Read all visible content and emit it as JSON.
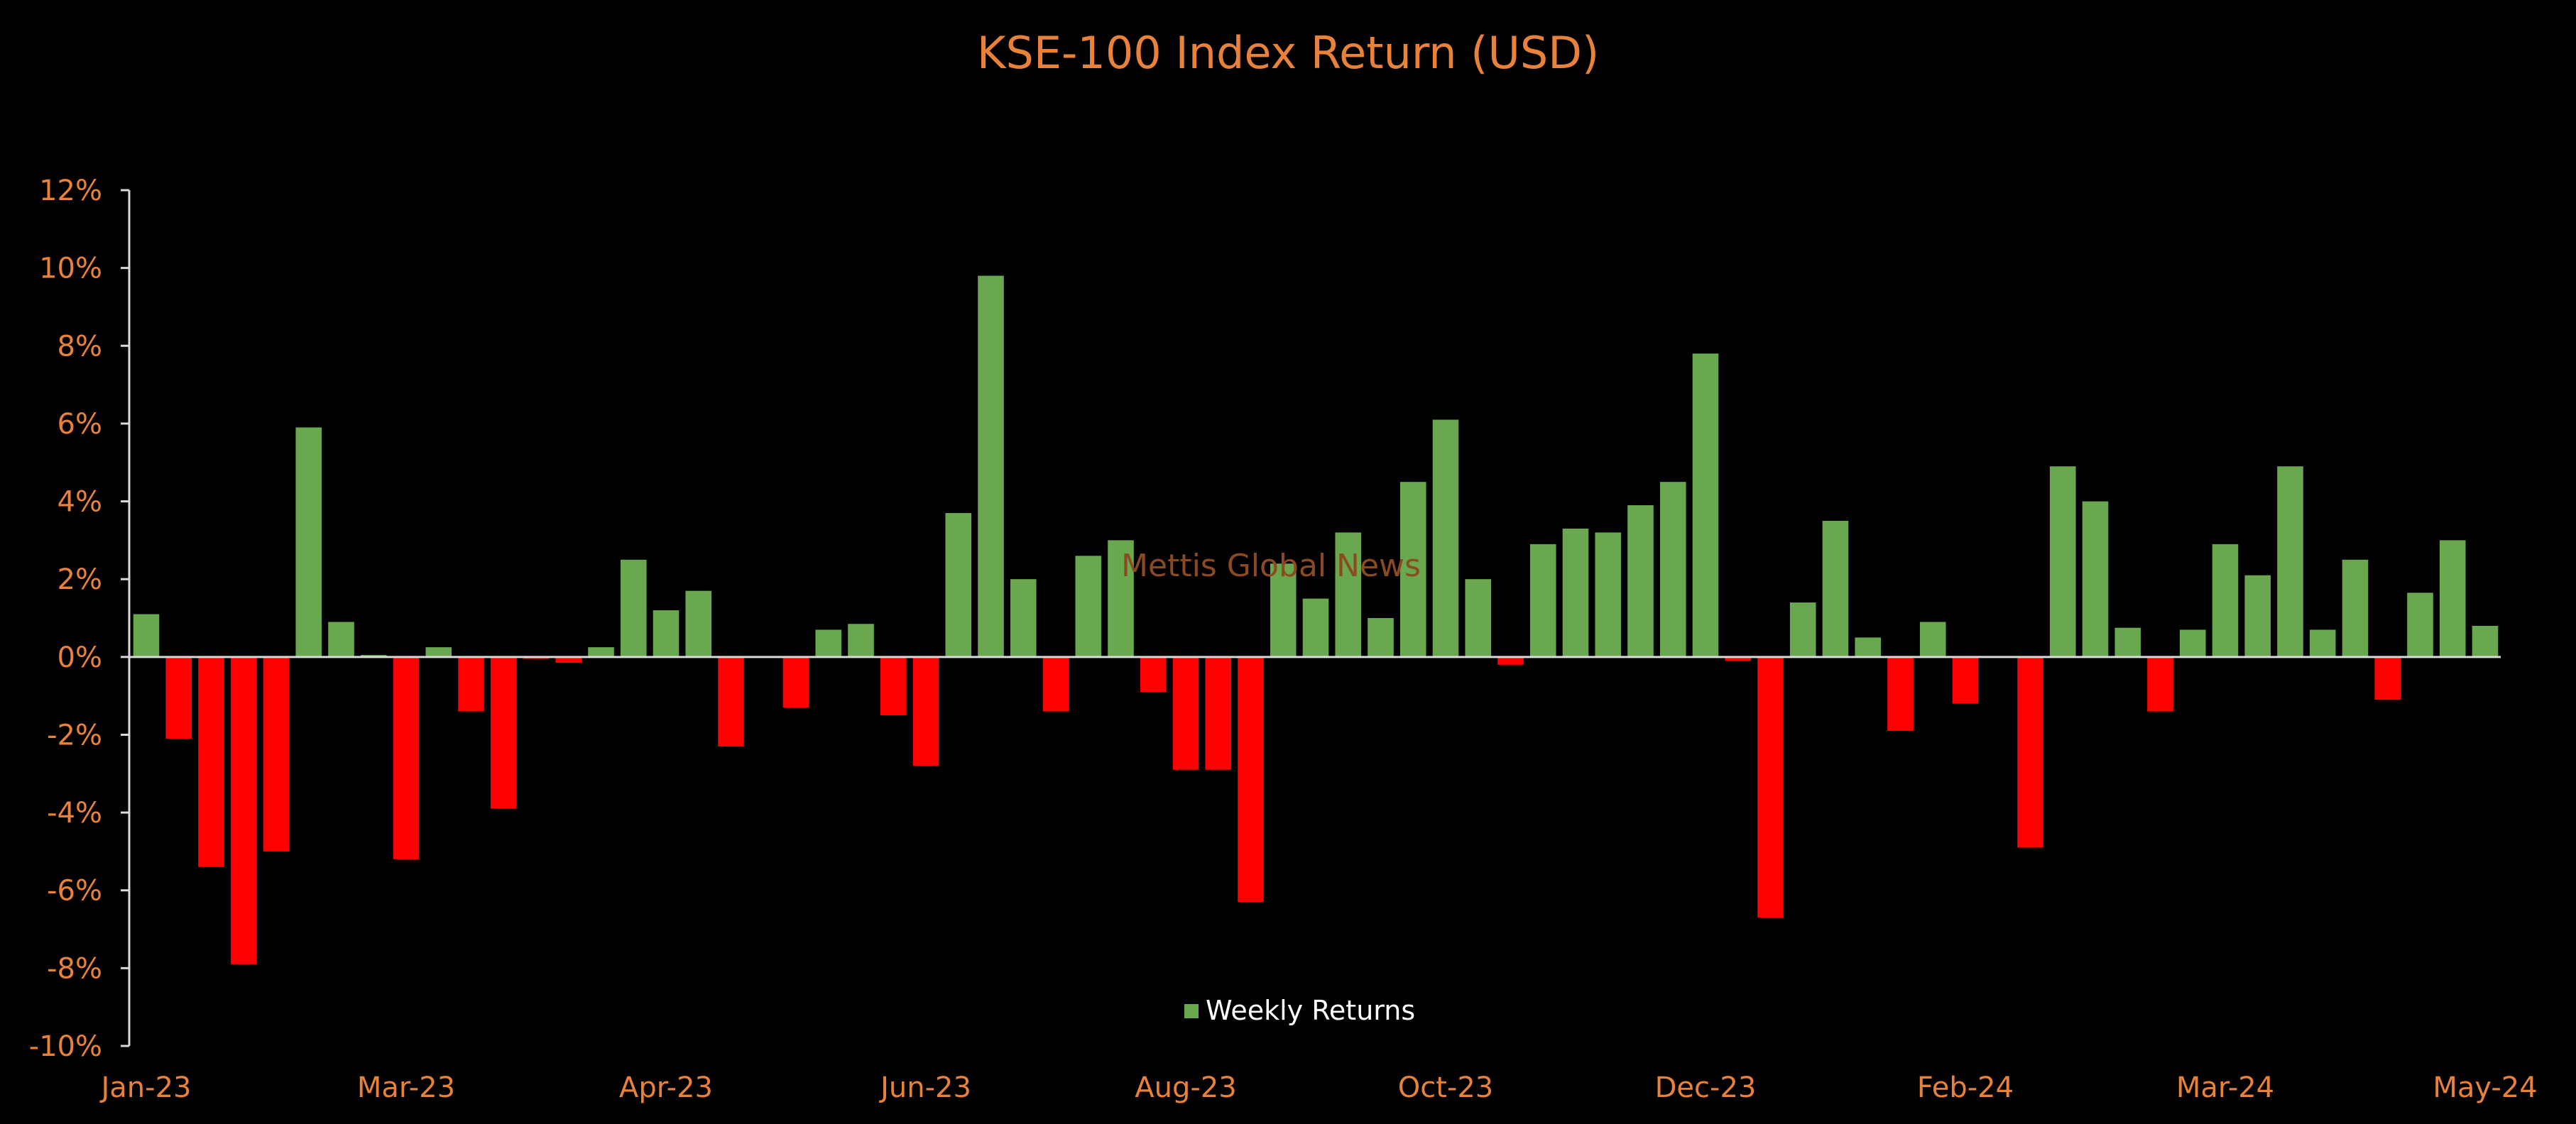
{
  "chart_data": {
    "type": "bar",
    "title": "KSE-100 Index Return (USD)",
    "watermark": "Mettis Global News",
    "xlabel": "",
    "ylabel": "",
    "ylim": [
      -10,
      12
    ],
    "y_ticks": [
      "-10%",
      "-8%",
      "-6%",
      "-4%",
      "-2%",
      "0%",
      "2%",
      "4%",
      "6%",
      "8%",
      "10%",
      "12%"
    ],
    "x_ticks": [
      "Jan-23",
      "Mar-23",
      "Apr-23",
      "Jun-23",
      "Aug-23",
      "Oct-23",
      "Dec-23",
      "Feb-24",
      "Mar-24",
      "May-24"
    ],
    "grid": false,
    "legend_position": "bottom",
    "colors": {
      "positive": "#6AA84F",
      "negative": "#FF0000",
      "text": "#E8813A",
      "axis": "#D9D9D9",
      "background": "#000000"
    },
    "series": [
      {
        "name": "Weekly Returns",
        "values": [
          1.1,
          -2.1,
          -5.4,
          -7.9,
          -5.0,
          5.9,
          0.9,
          0.05,
          -5.2,
          0.25,
          -1.4,
          -3.9,
          -0.05,
          -0.15,
          0.25,
          2.5,
          1.2,
          1.7,
          -2.3,
          0.0,
          -1.3,
          0.7,
          0.85,
          -1.5,
          -2.8,
          3.7,
          9.8,
          2.0,
          -1.4,
          2.6,
          3.0,
          -0.9,
          -2.9,
          -2.9,
          -6.3,
          2.4,
          1.5,
          3.2,
          1.0,
          4.5,
          6.1,
          2.0,
          -0.2,
          2.9,
          3.3,
          3.2,
          3.9,
          4.5,
          7.8,
          -0.1,
          -6.7,
          1.4,
          3.5,
          0.5,
          -1.9,
          0.9,
          -1.2,
          0.0,
          -4.9,
          4.9,
          4.0,
          0.75,
          -1.4,
          0.7,
          2.9,
          2.1,
          4.9,
          0.7,
          2.5,
          -1.1,
          1.65,
          3.0,
          0.8
        ]
      }
    ]
  }
}
